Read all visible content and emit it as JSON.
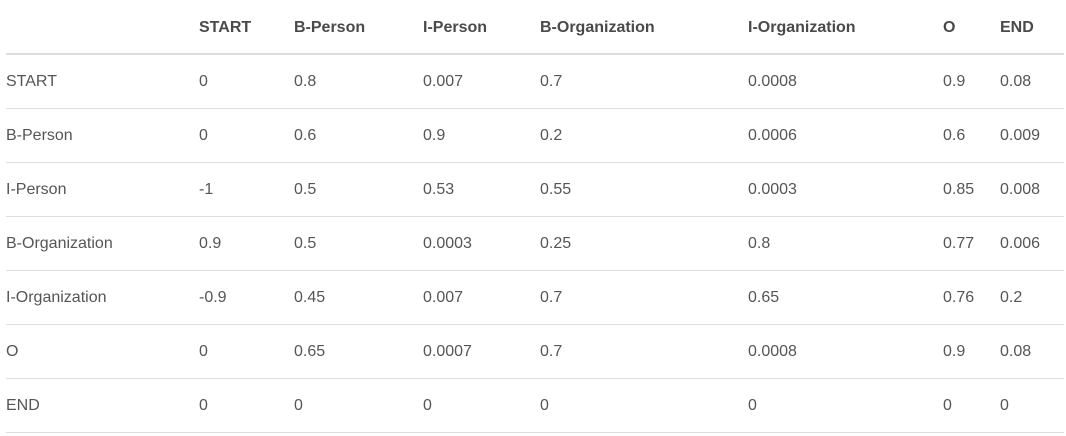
{
  "table": {
    "headers": [
      "",
      "START",
      "B-Person",
      "I-Person",
      "B-Organization",
      "I-Organization",
      "O",
      "END"
    ],
    "rows": [
      [
        "START",
        "0",
        "0.8",
        "0.007",
        "0.7",
        "0.0008",
        "0.9",
        "0.08"
      ],
      [
        "B-Person",
        "0",
        "0.6",
        "0.9",
        "0.2",
        "0.0006",
        "0.6",
        "0.009"
      ],
      [
        "I-Person",
        "-1",
        "0.5",
        "0.53",
        "0.55",
        "0.0003",
        "0.85",
        "0.008"
      ],
      [
        "B-Organization",
        "0.9",
        "0.5",
        "0.0003",
        "0.25",
        "0.8",
        "0.77",
        "0.006"
      ],
      [
        "I-Organization",
        "-0.9",
        "0.45",
        "0.007",
        "0.7",
        "0.65",
        "0.76",
        "0.2"
      ],
      [
        "O",
        "0",
        "0.65",
        "0.0007",
        "0.7",
        "0.0008",
        "0.9",
        "0.08"
      ],
      [
        "END",
        "0",
        "0",
        "0",
        "0",
        "0",
        "0",
        "0"
      ]
    ]
  }
}
